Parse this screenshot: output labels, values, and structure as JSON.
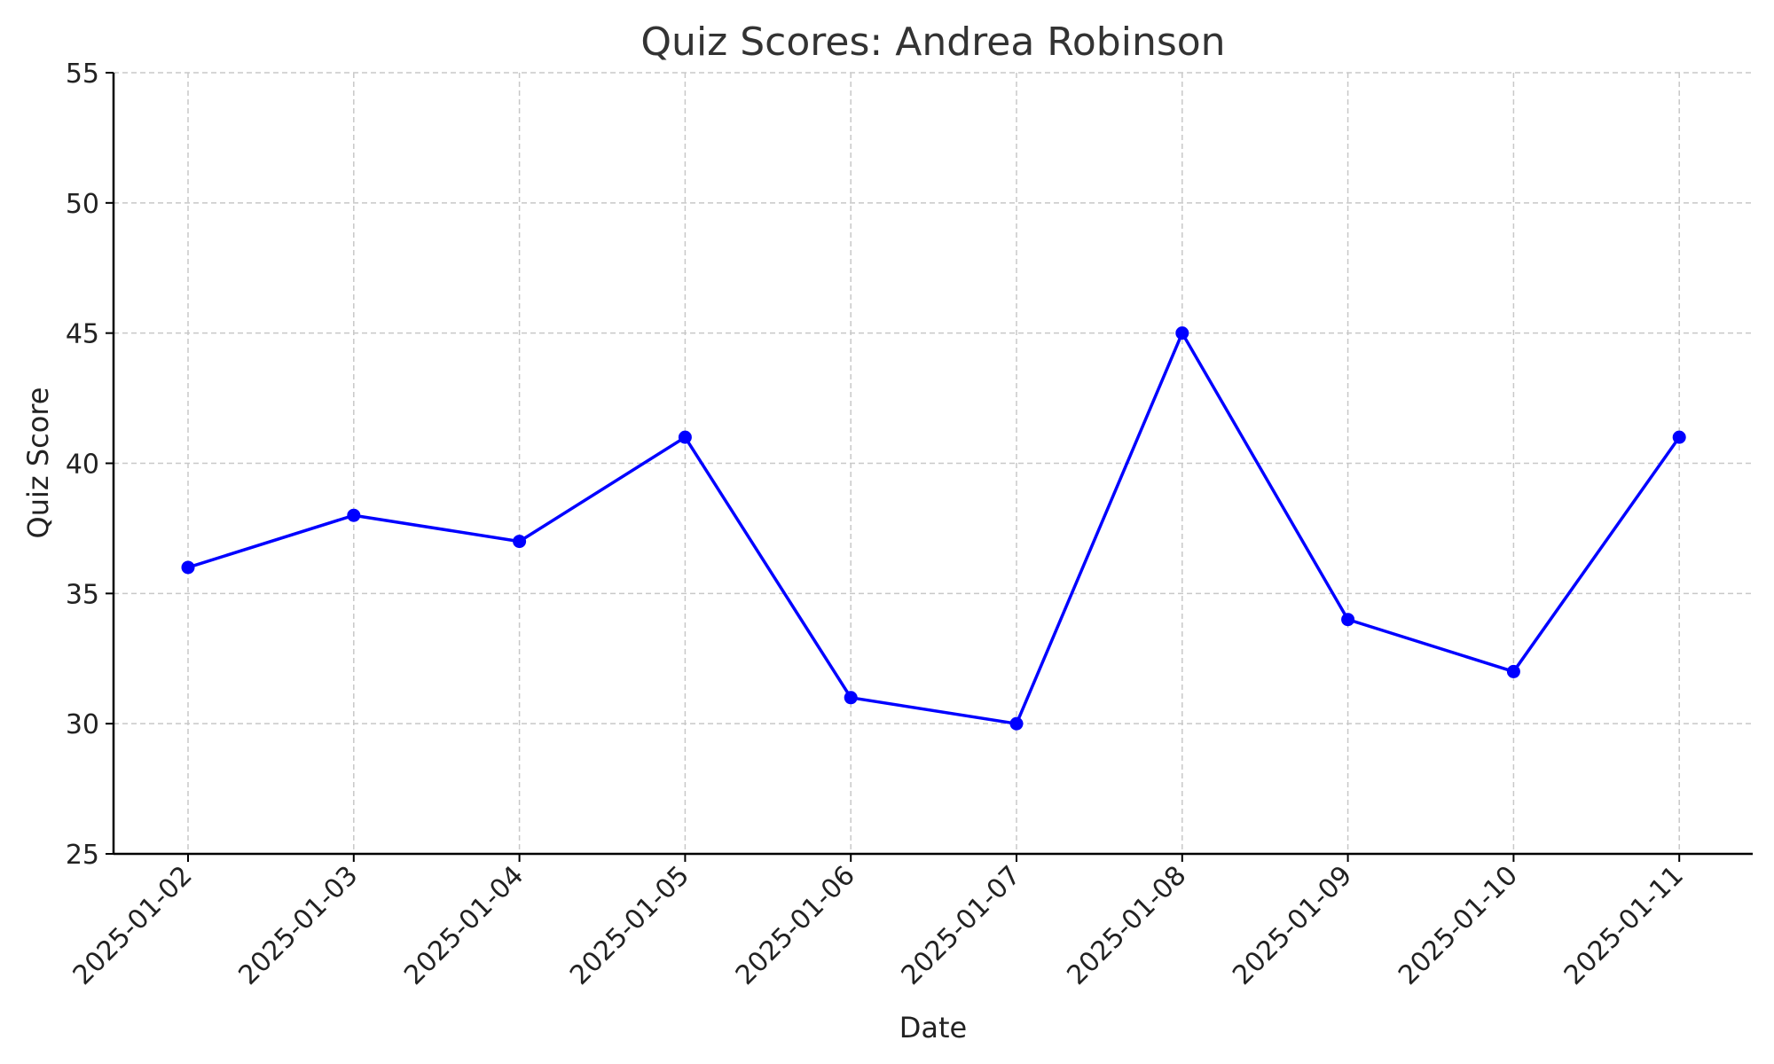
{
  "chart_data": {
    "type": "line",
    "title": "Quiz Scores: Andrea Robinson",
    "xlabel": "Date",
    "ylabel": "Quiz Score",
    "categories": [
      "2025-01-02",
      "2025-01-03",
      "2025-01-04",
      "2025-01-05",
      "2025-01-06",
      "2025-01-07",
      "2025-01-08",
      "2025-01-09",
      "2025-01-10",
      "2025-01-11"
    ],
    "series": [
      {
        "values": [
          36,
          38,
          37,
          41,
          31,
          30,
          45,
          34,
          32,
          41
        ],
        "color": "#0000ff",
        "marker": "circle"
      }
    ],
    "ylim": [
      25,
      55
    ],
    "yticks": [
      25,
      30,
      35,
      40,
      45,
      50,
      55
    ],
    "grid": true,
    "legend": "none"
  }
}
